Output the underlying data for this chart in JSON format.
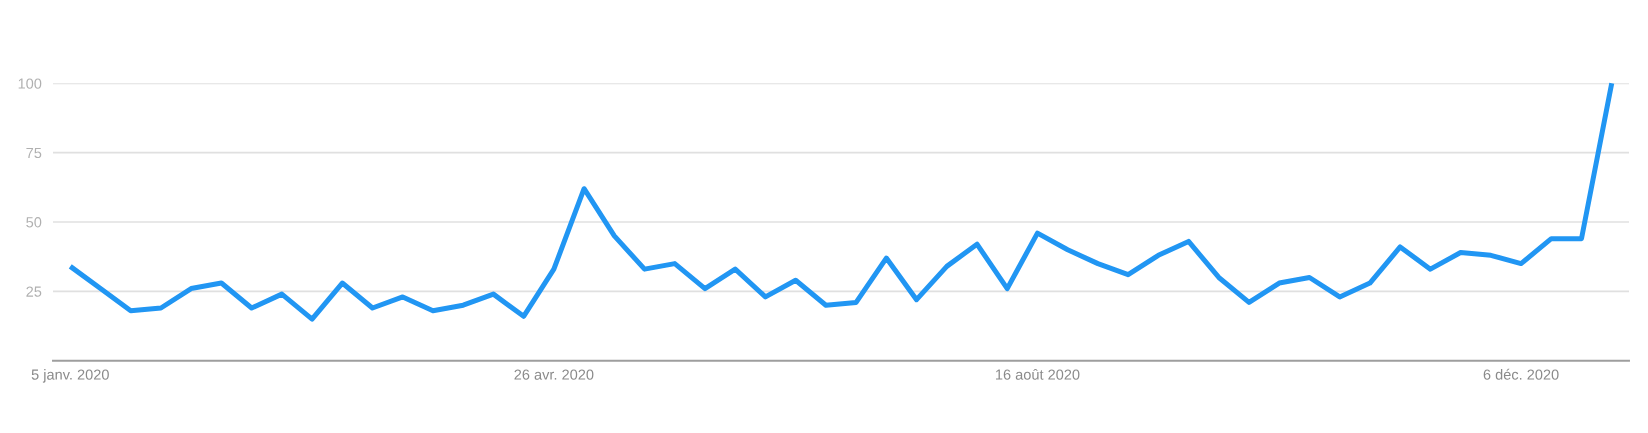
{
  "chart_data": {
    "type": "line",
    "x": [
      "2020-01-05",
      "2020-01-12",
      "2020-01-19",
      "2020-01-26",
      "2020-02-02",
      "2020-02-09",
      "2020-02-16",
      "2020-02-23",
      "2020-03-01",
      "2020-03-08",
      "2020-03-15",
      "2020-03-22",
      "2020-03-29",
      "2020-04-05",
      "2020-04-12",
      "2020-04-19",
      "2020-04-26",
      "2020-05-03",
      "2020-05-10",
      "2020-05-17",
      "2020-05-24",
      "2020-05-31",
      "2020-06-07",
      "2020-06-14",
      "2020-06-21",
      "2020-06-28",
      "2020-07-05",
      "2020-07-12",
      "2020-07-19",
      "2020-07-26",
      "2020-08-02",
      "2020-08-09",
      "2020-08-16",
      "2020-08-23",
      "2020-08-30",
      "2020-09-06",
      "2020-09-13",
      "2020-09-20",
      "2020-09-27",
      "2020-10-04",
      "2020-10-11",
      "2020-10-18",
      "2020-10-25",
      "2020-11-01",
      "2020-11-08",
      "2020-11-15",
      "2020-11-22",
      "2020-11-29",
      "2020-12-06",
      "2020-12-13",
      "2020-12-20",
      "2020-12-27"
    ],
    "values": [
      34,
      26,
      18,
      19,
      26,
      28,
      19,
      24,
      15,
      28,
      19,
      23,
      18,
      20,
      24,
      16,
      33,
      62,
      45,
      33,
      35,
      26,
      33,
      23,
      29,
      20,
      21,
      37,
      22,
      34,
      42,
      26,
      46,
      40,
      35,
      31,
      38,
      43,
      30,
      21,
      28,
      30,
      23,
      28,
      41,
      33,
      39,
      38,
      35,
      44,
      44,
      100
    ],
    "color": "#2196f3",
    "xlim": [
      "2020-01-01",
      "2020-12-31"
    ],
    "xticks": [
      {
        "value": "2020-01-05",
        "label": "5 janv. 2020"
      },
      {
        "value": "2020-04-26",
        "label": "26 avr. 2020"
      },
      {
        "value": "2020-08-16",
        "label": "16 août 2020"
      },
      {
        "value": "2020-12-06",
        "label": "6 déc. 2020"
      }
    ],
    "ylim": [
      0,
      100
    ],
    "yticks": [
      25,
      50,
      75,
      100
    ],
    "grid": "y"
  }
}
